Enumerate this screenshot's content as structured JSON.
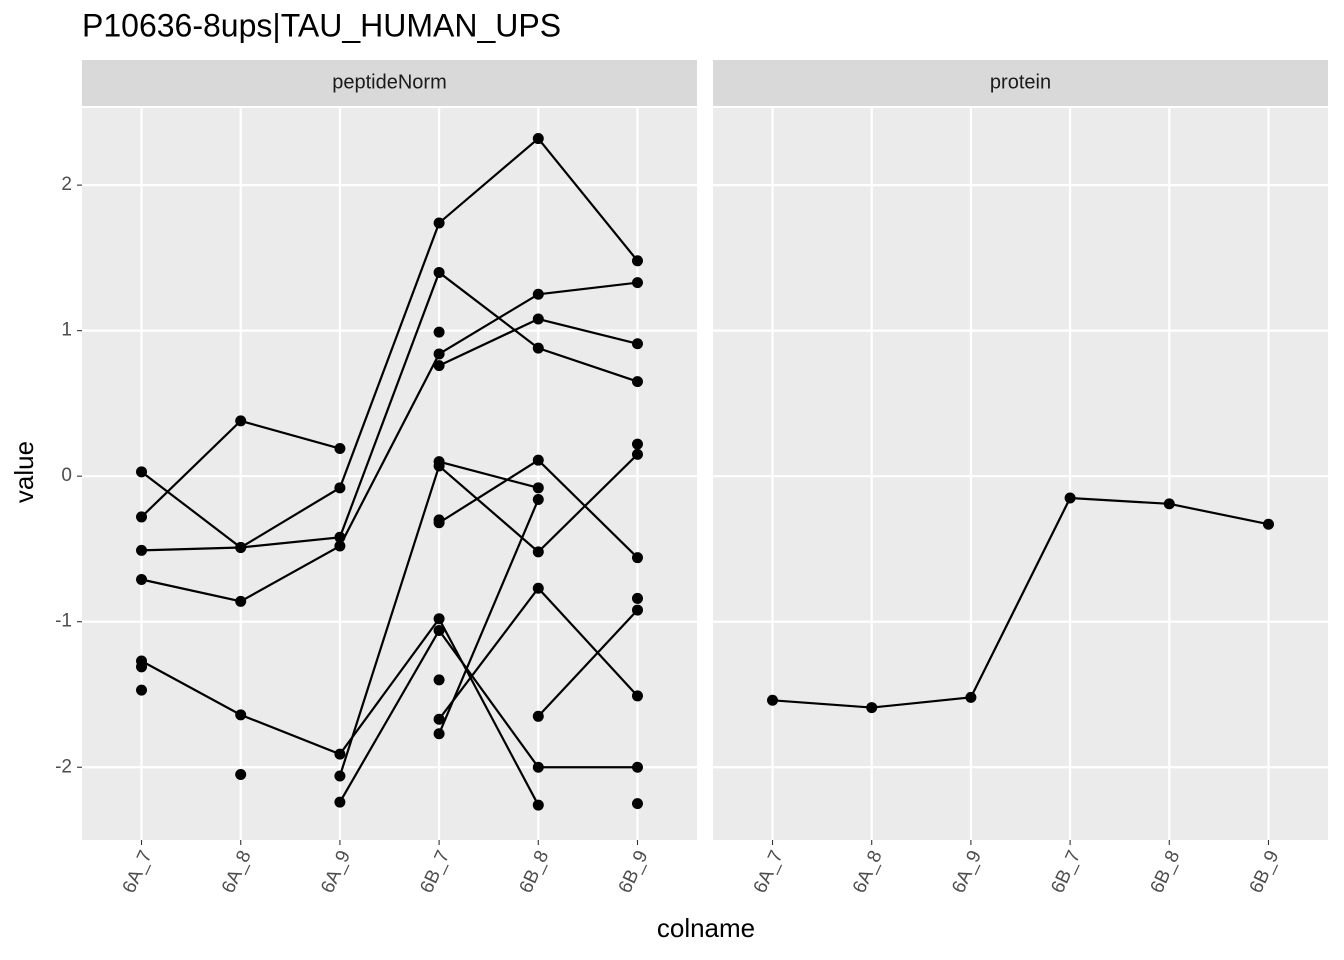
{
  "chart_data": {
    "type": "line",
    "title": "P10636-8ups|TAU_HUMAN_UPS",
    "xlabel": "colname",
    "ylabel": "value",
    "categories": [
      "6A_7",
      "6A_8",
      "6A_9",
      "6B_7",
      "6B_8",
      "6B_9"
    ],
    "ylim": [
      -2.5,
      2.53
    ],
    "yticks": [
      -2,
      -1,
      0,
      1,
      2
    ],
    "grid": true,
    "color": "#000000",
    "facets": [
      {
        "label": "peptideNorm",
        "series": [
          {
            "values": [
              0.03,
              -0.49,
              -0.08,
              1.74,
              2.32,
              1.48
            ]
          },
          {
            "values": [
              -0.28,
              0.38,
              0.19,
              null,
              null,
              null
            ]
          },
          {
            "values": [
              -0.51,
              -0.49,
              -0.42,
              1.4,
              0.88,
              0.65
            ]
          },
          {
            "values": [
              -0.71,
              -0.86,
              -0.48,
              0.84,
              1.25,
              1.33
            ]
          },
          {
            "values": [
              null,
              null,
              null,
              0.76,
              1.08,
              0.91
            ]
          },
          {
            "values": [
              -1.27,
              -1.64,
              -1.91,
              -0.98,
              -2.26,
              null
            ]
          },
          {
            "values": [
              null,
              null,
              -2.24,
              -1.06,
              -2.0,
              -2.0
            ]
          },
          {
            "values": [
              null,
              null,
              -2.06,
              0.07,
              -0.52,
              0.15
            ]
          },
          {
            "values": [
              null,
              null,
              null,
              0.1,
              -0.08,
              null
            ]
          },
          {
            "values": [
              null,
              null,
              null,
              -0.32,
              0.11,
              -0.56
            ]
          },
          {
            "values": [
              null,
              null,
              null,
              -1.77,
              -0.16,
              null
            ]
          },
          {
            "values": [
              null,
              null,
              null,
              -1.67,
              -0.77,
              -1.51
            ]
          },
          {
            "values": [
              null,
              null,
              null,
              null,
              -1.65,
              -0.92
            ]
          },
          {
            "values": [
              -1.31,
              null,
              null,
              0.99,
              null,
              0.22
            ]
          },
          {
            "values": [
              -1.47,
              null,
              null,
              -0.3,
              null,
              -0.84
            ]
          },
          {
            "values": [
              null,
              -2.05,
              null,
              -1.4,
              null,
              -2.25
            ]
          }
        ]
      },
      {
        "label": "protein",
        "series": [
          {
            "values": [
              -1.54,
              -1.59,
              -1.52,
              -0.15,
              -0.19,
              -0.33
            ]
          }
        ]
      }
    ]
  }
}
